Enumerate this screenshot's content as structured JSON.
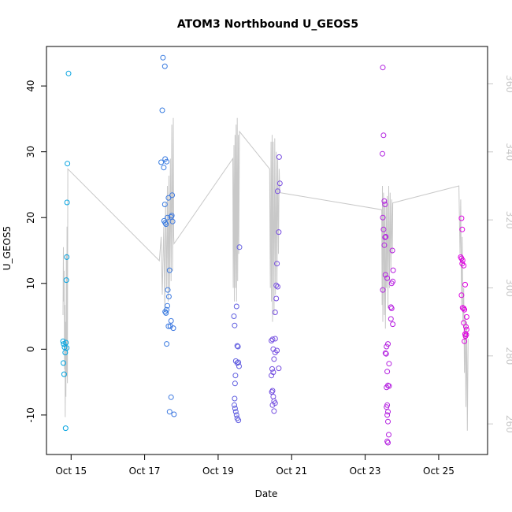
{
  "chart_data": {
    "type": "scatter",
    "title": "ATOM3 Northbound U_GEOS5",
    "xlabel": "Date",
    "ylabel": "U_GEOS5",
    "x_axis": {
      "unit": "days in October",
      "range": [
        14.33,
        26.33
      ],
      "ticks": [
        {
          "value": 15,
          "label": "Oct 15"
        },
        {
          "value": 17,
          "label": "Oct 17"
        },
        {
          "value": 19,
          "label": "Oct 19"
        },
        {
          "value": 21,
          "label": "Oct 21"
        },
        {
          "value": 23,
          "label": "Oct 23"
        },
        {
          "value": 25,
          "label": "Oct 25"
        }
      ]
    },
    "y_axis_left": {
      "range": [
        -16,
        46
      ],
      "ticks": [
        -10,
        0,
        10,
        20,
        30,
        40
      ]
    },
    "y_axis_right": {
      "range": [
        251,
        371
      ],
      "ticks": [
        260,
        280,
        300,
        320,
        340,
        360
      ],
      "color": "#c8c8c8"
    },
    "point_color_start": "#00a6e0",
    "point_color_end": "#e000e0",
    "line_color": "#c8c8c8",
    "grid": false,
    "series": [
      {
        "type": "points",
        "axis": "left",
        "points": [
          [
            14.78,
            1.2
          ],
          [
            14.8,
            0.8
          ],
          [
            14.82,
            0.3
          ],
          [
            14.84,
            -0.5
          ],
          [
            14.79,
            -2.1
          ],
          [
            14.81,
            -3.8
          ],
          [
            14.86,
            1.0
          ],
          [
            14.88,
            0.2
          ],
          [
            14.85,
            -12.0
          ],
          [
            14.87,
            10.5
          ],
          [
            14.88,
            14.0
          ],
          [
            14.89,
            22.3
          ],
          [
            14.9,
            28.2
          ],
          [
            14.93,
            41.9
          ],
          [
            17.5,
            44.3
          ],
          [
            17.55,
            43.0
          ],
          [
            17.48,
            36.3
          ],
          [
            17.45,
            28.4
          ],
          [
            17.52,
            27.6
          ],
          [
            17.56,
            28.9
          ],
          [
            17.6,
            28.5
          ],
          [
            17.55,
            22.0
          ],
          [
            17.53,
            19.5
          ],
          [
            17.56,
            19.2
          ],
          [
            17.58,
            19.0
          ],
          [
            17.62,
            20.0
          ],
          [
            17.65,
            23.0
          ],
          [
            17.75,
            23.4
          ],
          [
            17.72,
            20.1
          ],
          [
            17.74,
            20.3
          ],
          [
            17.76,
            19.4
          ],
          [
            17.68,
            12.0
          ],
          [
            17.63,
            9.0
          ],
          [
            17.66,
            8.0
          ],
          [
            17.62,
            6.6
          ],
          [
            17.58,
            5.5
          ],
          [
            17.6,
            6.0
          ],
          [
            17.56,
            5.7
          ],
          [
            17.65,
            3.5
          ],
          [
            17.7,
            3.5
          ],
          [
            17.72,
            4.3
          ],
          [
            17.78,
            3.2
          ],
          [
            17.6,
            0.8
          ],
          [
            17.72,
            -7.3
          ],
          [
            17.68,
            -9.5
          ],
          [
            17.8,
            -9.9
          ],
          [
            19.43,
            5.0
          ],
          [
            19.45,
            3.6
          ],
          [
            19.5,
            6.5
          ],
          [
            19.52,
            0.5
          ],
          [
            19.54,
            0.4
          ],
          [
            19.48,
            -1.8
          ],
          [
            19.52,
            -2.1
          ],
          [
            19.55,
            -2.0
          ],
          [
            19.57,
            -2.6
          ],
          [
            19.47,
            -4.0
          ],
          [
            19.46,
            -5.2
          ],
          [
            19.45,
            -7.5
          ],
          [
            19.44,
            -8.5
          ],
          [
            19.46,
            -9.0
          ],
          [
            19.48,
            -9.5
          ],
          [
            19.5,
            -10.0
          ],
          [
            19.52,
            -10.5
          ],
          [
            19.55,
            -10.8
          ],
          [
            19.58,
            15.5
          ],
          [
            20.45,
            1.3
          ],
          [
            20.48,
            1.5
          ],
          [
            20.55,
            1.6
          ],
          [
            20.5,
            0.0
          ],
          [
            20.55,
            -0.5
          ],
          [
            20.6,
            -0.2
          ],
          [
            20.52,
            -1.5
          ],
          [
            20.47,
            -3.0
          ],
          [
            20.5,
            -3.5
          ],
          [
            20.45,
            -4.0
          ],
          [
            20.65,
            -2.9
          ],
          [
            20.48,
            -6.3
          ],
          [
            20.46,
            -6.5
          ],
          [
            20.5,
            -7.2
          ],
          [
            20.52,
            -7.9
          ],
          [
            20.48,
            -8.5
          ],
          [
            20.52,
            -9.4
          ],
          [
            20.55,
            -8.2
          ],
          [
            20.58,
            9.7
          ],
          [
            20.62,
            9.5
          ],
          [
            20.58,
            7.7
          ],
          [
            20.55,
            5.6
          ],
          [
            20.6,
            13.0
          ],
          [
            20.65,
            17.8
          ],
          [
            20.62,
            24.0
          ],
          [
            20.68,
            25.2
          ],
          [
            20.66,
            29.2
          ],
          [
            23.48,
            42.8
          ],
          [
            23.5,
            32.5
          ],
          [
            23.47,
            29.7
          ],
          [
            23.52,
            22.5
          ],
          [
            23.54,
            22.0
          ],
          [
            23.48,
            20.0
          ],
          [
            23.5,
            18.2
          ],
          [
            23.54,
            17.0
          ],
          [
            23.56,
            17.1
          ],
          [
            23.52,
            15.8
          ],
          [
            23.55,
            11.3
          ],
          [
            23.6,
            10.8
          ],
          [
            23.48,
            9.0
          ],
          [
            23.58,
            0.4
          ],
          [
            23.62,
            0.8
          ],
          [
            23.55,
            -0.6
          ],
          [
            23.57,
            -0.7
          ],
          [
            23.65,
            -2.2
          ],
          [
            23.6,
            -3.4
          ],
          [
            23.58,
            -5.8
          ],
          [
            23.62,
            -5.5
          ],
          [
            23.65,
            -5.6
          ],
          [
            23.6,
            -8.5
          ],
          [
            23.58,
            -8.8
          ],
          [
            23.62,
            -9.5
          ],
          [
            23.6,
            -10.0
          ],
          [
            23.62,
            -11.0
          ],
          [
            23.64,
            -13.0
          ],
          [
            23.6,
            -14.0
          ],
          [
            23.62,
            -14.2
          ],
          [
            23.7,
            6.4
          ],
          [
            23.72,
            6.2
          ],
          [
            23.75,
            3.8
          ],
          [
            23.7,
            4.6
          ],
          [
            23.72,
            10.0
          ],
          [
            23.75,
            10.3
          ],
          [
            23.76,
            12.0
          ],
          [
            23.74,
            15.0
          ],
          [
            25.6,
            14.0
          ],
          [
            25.62,
            13.8
          ],
          [
            25.65,
            13.5
          ],
          [
            25.68,
            12.7
          ],
          [
            25.64,
            13.0
          ],
          [
            25.62,
            8.2
          ],
          [
            25.65,
            6.3
          ],
          [
            25.68,
            6.2
          ],
          [
            25.7,
            6.0
          ],
          [
            25.72,
            9.8
          ],
          [
            25.68,
            4.0
          ],
          [
            25.74,
            3.4
          ],
          [
            25.72,
            2.3
          ],
          [
            25.73,
            2.0
          ],
          [
            25.75,
            2.2
          ],
          [
            25.7,
            1.2
          ],
          [
            25.76,
            4.9
          ],
          [
            25.76,
            3.0
          ],
          [
            25.64,
            18.2
          ],
          [
            25.62,
            19.9
          ]
        ]
      },
      {
        "type": "line",
        "axis": "right",
        "points": [
          [
            14.78,
            292
          ],
          [
            14.79,
            312
          ],
          [
            14.8,
            296
          ],
          [
            14.81,
            305
          ],
          [
            14.82,
            276
          ],
          [
            14.83,
            295
          ],
          [
            14.84,
            262
          ],
          [
            14.85,
            290
          ],
          [
            14.86,
            268
          ],
          [
            14.87,
            310
          ],
          [
            14.88,
            274
          ],
          [
            14.89,
            318
          ],
          [
            14.9,
            272
          ],
          [
            14.91,
            335
          ],
          [
            17.4,
            308
          ],
          [
            17.45,
            315
          ],
          [
            17.48,
            298
          ],
          [
            17.52,
            318
          ],
          [
            17.55,
            293
          ],
          [
            17.57,
            325
          ],
          [
            17.6,
            300
          ],
          [
            17.62,
            330
          ],
          [
            17.64,
            296
          ],
          [
            17.66,
            333
          ],
          [
            17.68,
            299
          ],
          [
            17.7,
            338
          ],
          [
            17.72,
            302
          ],
          [
            17.74,
            348
          ],
          [
            17.76,
            305
          ],
          [
            17.78,
            350
          ],
          [
            17.79,
            315
          ],
          [
            17.8,
            313
          ],
          [
            19.4,
            338
          ],
          [
            19.41,
            300
          ],
          [
            19.43,
            342
          ],
          [
            19.44,
            296
          ],
          [
            19.46,
            345
          ],
          [
            19.47,
            300
          ],
          [
            19.49,
            348
          ],
          [
            19.5,
            296
          ],
          [
            19.52,
            350
          ],
          [
            19.53,
            302
          ],
          [
            19.55,
            345
          ],
          [
            19.56,
            310
          ],
          [
            19.58,
            346
          ],
          [
            20.4,
            335
          ],
          [
            20.42,
            300
          ],
          [
            20.44,
            343
          ],
          [
            20.45,
            296
          ],
          [
            20.47,
            345
          ],
          [
            20.48,
            290
          ],
          [
            20.5,
            343
          ],
          [
            20.52,
            292
          ],
          [
            20.54,
            344
          ],
          [
            20.56,
            298
          ],
          [
            20.58,
            340
          ],
          [
            20.6,
            300
          ],
          [
            20.62,
            338
          ],
          [
            20.64,
            310
          ],
          [
            20.66,
            335
          ],
          [
            20.68,
            328
          ],
          [
            23.45,
            323
          ],
          [
            23.46,
            295
          ],
          [
            23.47,
            330
          ],
          [
            23.48,
            290
          ],
          [
            23.5,
            328
          ],
          [
            23.52,
            292
          ],
          [
            23.53,
            325
          ],
          [
            23.55,
            288
          ],
          [
            23.57,
            326
          ],
          [
            23.58,
            300
          ],
          [
            23.6,
            327
          ],
          [
            23.62,
            294
          ],
          [
            23.64,
            330
          ],
          [
            23.66,
            300
          ],
          [
            23.68,
            328
          ],
          [
            23.7,
            305
          ],
          [
            23.72,
            326
          ],
          [
            23.74,
            310
          ],
          [
            23.75,
            325
          ],
          [
            25.55,
            330
          ],
          [
            25.58,
            310
          ],
          [
            25.6,
            326
          ],
          [
            25.62,
            295
          ],
          [
            25.64,
            315
          ],
          [
            25.66,
            290
          ],
          [
            25.68,
            300
          ],
          [
            25.7,
            275
          ],
          [
            25.72,
            292
          ],
          [
            25.74,
            265
          ],
          [
            25.76,
            290
          ],
          [
            25.78,
            258
          ],
          [
            25.8,
            285
          ]
        ]
      }
    ]
  }
}
